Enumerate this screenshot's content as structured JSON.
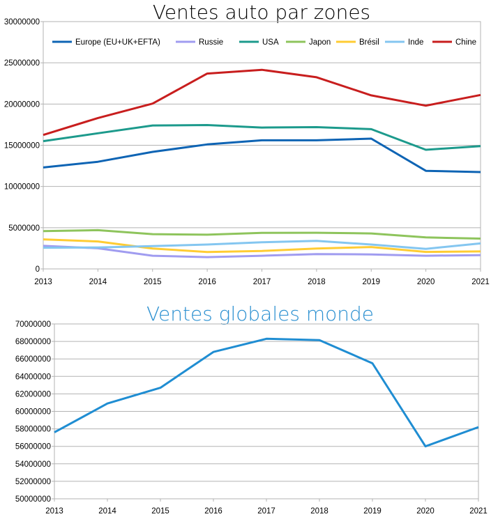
{
  "chart_data": [
    {
      "type": "line",
      "title": "Ventes auto par zones",
      "title_color": "#000000",
      "x": [
        "2013",
        "2014",
        "2015",
        "2016",
        "2017",
        "2018",
        "2019",
        "2020",
        "2021"
      ],
      "ylim": [
        0,
        30000000
      ],
      "yticks": [
        "0",
        "5000000",
        "10000000",
        "15000000",
        "20000000",
        "25000000",
        "30000000"
      ],
      "grid": true,
      "legend_position": "top-inside",
      "series": [
        {
          "name": "Europe (EU+UK+EFTA)",
          "color": "#0e64b4",
          "values": [
            12300000,
            13000000,
            14200000,
            15100000,
            15600000,
            15600000,
            15800000,
            11900000,
            11750000
          ]
        },
        {
          "name": "Russie",
          "color": "#a09cf0",
          "values": [
            2800000,
            2500000,
            1600000,
            1430000,
            1600000,
            1800000,
            1760000,
            1600000,
            1670000
          ]
        },
        {
          "name": "USA",
          "color": "#1c9a8c",
          "values": [
            15500000,
            16450000,
            17400000,
            17450000,
            17150000,
            17200000,
            16950000,
            14450000,
            14900000
          ]
        },
        {
          "name": "Japon",
          "color": "#8ec45c",
          "values": [
            4580000,
            4700000,
            4220000,
            4150000,
            4380000,
            4390000,
            4300000,
            3820000,
            3680000
          ]
        },
        {
          "name": "Brésil",
          "color": "#ffcc33",
          "values": [
            3580000,
            3330000,
            2480000,
            2050000,
            2180000,
            2480000,
            2650000,
            2060000,
            2120000
          ]
        },
        {
          "name": "Inde",
          "color": "#84c6f0",
          "values": [
            2570000,
            2600000,
            2760000,
            2960000,
            3230000,
            3400000,
            2960000,
            2430000,
            3090000
          ]
        },
        {
          "name": "Chine",
          "color": "#c81e1e",
          "values": [
            16250000,
            18300000,
            20050000,
            23700000,
            24150000,
            23250000,
            21050000,
            19800000,
            21100000
          ]
        }
      ]
    },
    {
      "type": "line",
      "title": "Ventes globales monde",
      "title_color": "#2a8fd0",
      "x": [
        "2013",
        "2014",
        "2015",
        "2016",
        "2017",
        "2018",
        "2019",
        "2020",
        "2021"
      ],
      "ylim": [
        50000000,
        70000000
      ],
      "yticks": [
        "50000000",
        "52000000",
        "54000000",
        "56000000",
        "58000000",
        "60000000",
        "62000000",
        "64000000",
        "66000000",
        "68000000",
        "70000000"
      ],
      "grid": true,
      "series": [
        {
          "color": "#1f8dd2",
          "values": [
            57600000,
            60900000,
            62700000,
            66800000,
            68300000,
            68150000,
            65500000,
            56000000,
            58200000
          ]
        }
      ]
    }
  ]
}
